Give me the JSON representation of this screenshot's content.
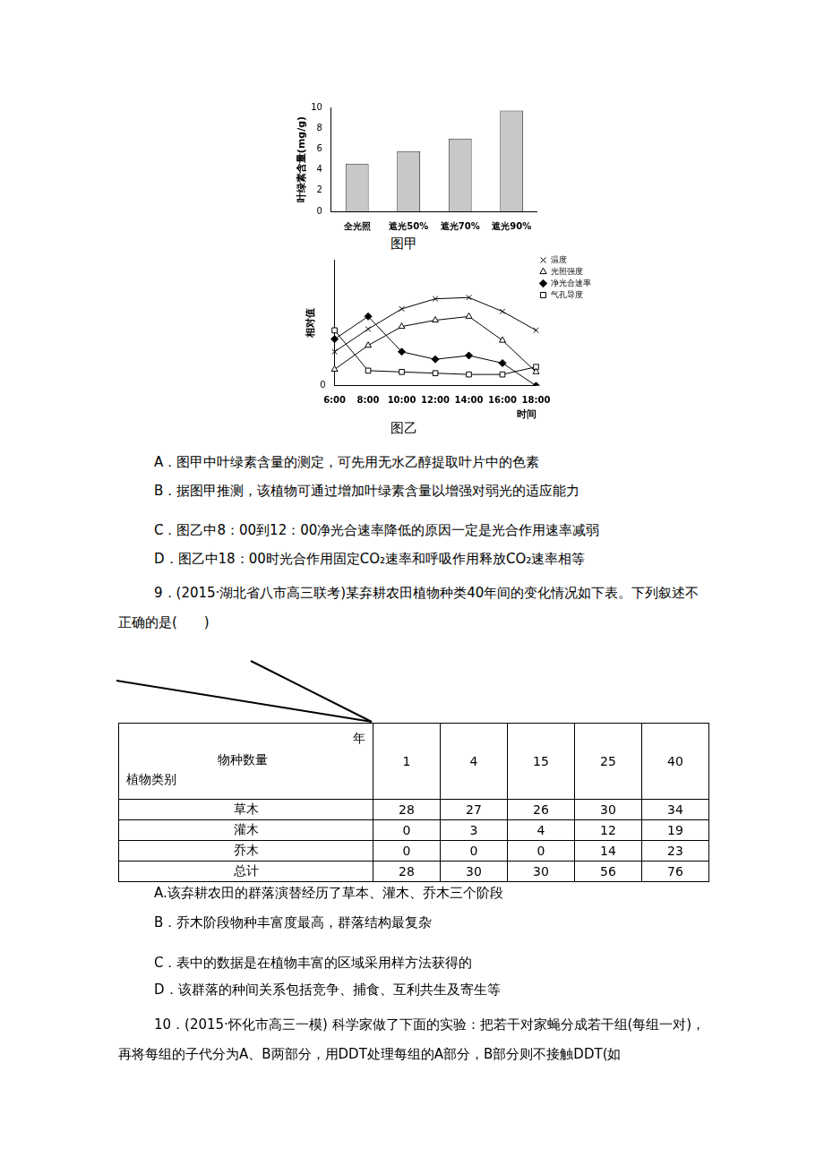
{
  "chart_data": [
    {
      "type": "bar",
      "title": "图甲",
      "y_label": "叶绿素含量(mg/g)",
      "categories": [
        "全光照",
        "遮光50%",
        "遮光70%",
        "遮光90%"
      ],
      "values": [
        4.6,
        5.8,
        7.0,
        9.7
      ],
      "color": "#c8c8c8",
      "ylim": [
        0,
        10
      ],
      "yticks": [
        0,
        2,
        4,
        6,
        8,
        10
      ],
      "grid": false
    },
    {
      "type": "line",
      "title": "图乙",
      "y_label": "相对值",
      "x_label": "时间",
      "categories": [
        "6:00",
        "8:00",
        "10:00",
        "12:00",
        "14:00",
        "16:00",
        "18:00"
      ],
      "series": [
        {
          "name": "温度",
          "color": "#000000",
          "marker": "x",
          "values": [
            2.7,
            4.5,
            6.1,
            6.9,
            7.0,
            5.9,
            4.4
          ]
        },
        {
          "name": "光照强度",
          "color": "#000000",
          "marker": "triangle",
          "values": [
            1.3,
            3.2,
            4.7,
            5.2,
            5.5,
            3.6,
            1.1
          ]
        },
        {
          "name": "净光合速率",
          "color": "#000000",
          "marker": "diamond",
          "values": [
            3.7,
            5.5,
            2.7,
            2.1,
            2.4,
            1.8,
            0
          ]
        },
        {
          "name": "气孔导度",
          "color": "#000000",
          "marker": "square",
          "values": [
            4.4,
            1.2,
            1.1,
            1.0,
            0.9,
            0.9,
            1.5
          ]
        }
      ],
      "ylim": [
        0,
        10
      ],
      "yticks": [
        0
      ],
      "grid": false,
      "legend": "upper right"
    }
  ],
  "document": {
    "q8_options": [
      "A．图甲中叶绿素含量的测定，可先用无水乙醇提取叶片中的色素",
      "B．据图甲推测，该植物可通过增加叶绿素含量以增强对弱光的适应能力",
      "C．图乙中8：00到12：00净光合速率降低的原因一定是光合作用速率减弱",
      "D．图乙中18：00时光合作用固定CO₂速率和呼吸作用释放CO₂速率相等"
    ],
    "q9": {
      "stem": "9．(2015·湖北省八市高三联考)某弃耕农田植物种类40年间的变化情况如下表。下列叙述不正确的是(　　)",
      "table": {
        "corner": {
          "top_right": "年",
          "middle": "物种数量",
          "bottom_left": "植物类别"
        },
        "columns": [
          "1",
          "4",
          "15",
          "25",
          "40"
        ],
        "rows": [
          [
            "草木",
            "28",
            "27",
            "26",
            "30",
            "34"
          ],
          [
            "灌木",
            "0",
            "3",
            "4",
            "12",
            "19"
          ],
          [
            "乔木",
            "0",
            "0",
            "0",
            "14",
            "23"
          ],
          [
            "总计",
            "28",
            "30",
            "30",
            "56",
            "76"
          ]
        ]
      },
      "options": [
        "A.该弃耕农田的群落演替经历了草本、灌木、乔木三个阶段",
        "B．乔木阶段物种丰富度最高，群落结构最复杂",
        "C．表中的数据是在植物丰富的区域采用样方法获得的",
        "D．该群落的种间关系包括竞争、捕食、互利共生及寄生等"
      ]
    },
    "q10": {
      "text": "10．(2015·怀化市高三一模) 科学家做了下面的实验：把若干对家蝇分成若干组(每组一对)，再将每组的子代分为A、B两部分，用DDT处理每组的A部分，B部分则不接触DDT(如"
    }
  }
}
